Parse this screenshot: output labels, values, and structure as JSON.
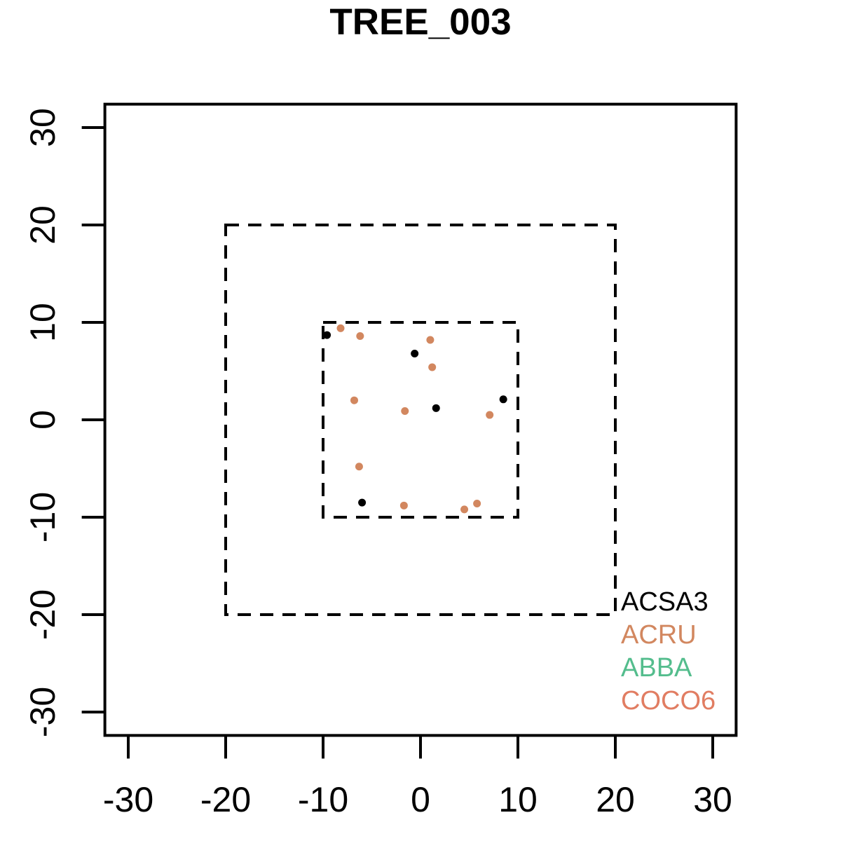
{
  "title": "TREE_003",
  "chart_data": {
    "type": "scatter",
    "title": "TREE_003",
    "xlabel": "",
    "ylabel": "",
    "xlim": [
      -32.4,
      32.4
    ],
    "ylim": [
      -32.4,
      32.4
    ],
    "x_ticks": [
      "-30",
      "-20",
      "-10",
      "0",
      "10",
      "20",
      "30"
    ],
    "y_ticks": [
      "-30",
      "-20",
      "-10",
      "0",
      "10",
      "20",
      "30"
    ],
    "x_tick_values": [
      -30,
      -20,
      -10,
      0,
      10,
      20,
      30
    ],
    "y_tick_values": [
      -30,
      -20,
      -10,
      0,
      10,
      20,
      30
    ],
    "grid": false,
    "dashed_squares": [
      {
        "name": "outer-plot-boundary",
        "half_width": 20
      },
      {
        "name": "inner-plot-boundary",
        "half_width": 10
      }
    ],
    "series": [
      {
        "name": "ACSA3",
        "color": "#000000",
        "points": [
          [
            -9.6,
            8.7
          ],
          [
            -0.6,
            6.8
          ],
          [
            1.6,
            1.2
          ],
          [
            8.5,
            2.1
          ],
          [
            -6.0,
            -8.5
          ]
        ]
      },
      {
        "name": "ACRU",
        "color": "#D2875F",
        "points": [
          [
            -8.2,
            9.4
          ],
          [
            -6.2,
            8.6
          ],
          [
            1.0,
            8.2
          ],
          [
            1.2,
            5.4
          ],
          [
            -6.8,
            2.0
          ],
          [
            -1.6,
            0.9
          ],
          [
            7.1,
            0.5
          ],
          [
            -6.3,
            -4.8
          ],
          [
            -1.7,
            -8.8
          ],
          [
            4.5,
            -9.2
          ],
          [
            5.8,
            -8.6
          ]
        ]
      },
      {
        "name": "ABBA",
        "color": "#54BD8D",
        "points": []
      },
      {
        "name": "COCO6",
        "color": "#E17D62",
        "points": []
      }
    ],
    "legend": {
      "position": "bottom-right",
      "items": [
        {
          "label": "ACSA3",
          "color": "#000000"
        },
        {
          "label": "ACRU",
          "color": "#D2875F"
        },
        {
          "label": "ABBA",
          "color": "#54BD8D"
        },
        {
          "label": "COCO6",
          "color": "#E17D62"
        }
      ]
    }
  }
}
